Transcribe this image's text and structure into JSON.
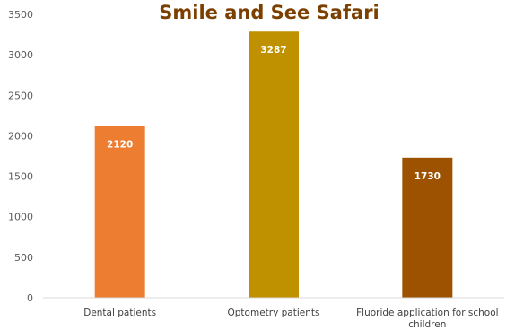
{
  "chart_data": {
    "type": "bar",
    "title": "Smile and See Safari",
    "xlabel": "",
    "ylabel": "",
    "categories": [
      [
        "Dental patients"
      ],
      [
        "Optometry patients"
      ],
      [
        "Fluoride application for school",
        "children"
      ]
    ],
    "values": [
      2120,
      3287,
      1730
    ],
    "data_labels": [
      "2120",
      "3287",
      "1730"
    ],
    "ylim": [
      0,
      3500
    ],
    "yticks": [
      0,
      500,
      1000,
      1500,
      2000,
      2500,
      3000,
      3500
    ],
    "ytick_labels": [
      "0",
      "500",
      "1000",
      "1500",
      "2000",
      "2500",
      "3000",
      "3500"
    ],
    "grid": false,
    "legend": "none",
    "colors": [
      "#ED7D31",
      "#BF9000",
      "#9C5200"
    ],
    "title_color": "#7B3F00",
    "axis_color": "#D9D9D9"
  }
}
